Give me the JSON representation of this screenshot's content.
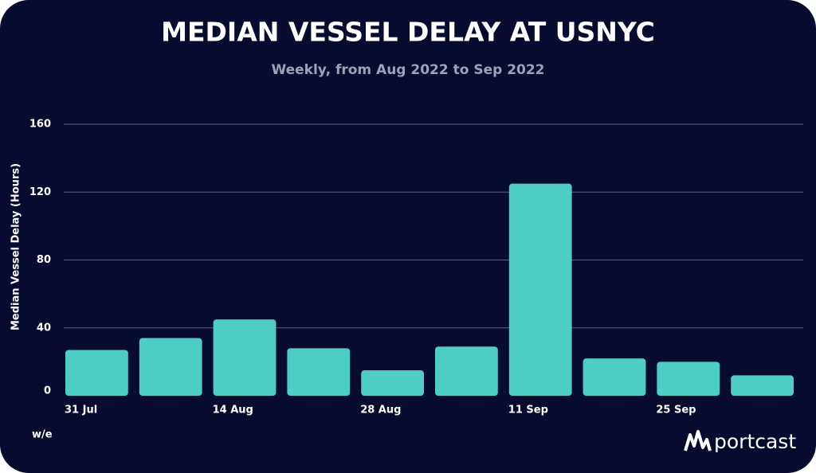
{
  "chart_data": {
    "type": "bar",
    "title": "MEDIAN VESSEL DELAY AT USNYC",
    "subtitle": "Weekly, from Aug 2022 to Sep 2022",
    "y_label": "Median Vessel Delay (Hours)",
    "x_label": "w/e",
    "brand": "portcast",
    "categories": [
      "31 Jul",
      null,
      "14 Aug",
      null,
      "28 Aug",
      null,
      "11 Sep",
      null,
      "25 Sep",
      null
    ],
    "values": [
      27,
      34,
      45,
      28,
      15,
      29,
      125,
      22,
      20,
      12
    ],
    "color": "#4ecdc4",
    "ylim": [
      0,
      160
    ],
    "yticks": [
      0,
      40,
      80,
      120,
      160
    ],
    "grid": true
  }
}
